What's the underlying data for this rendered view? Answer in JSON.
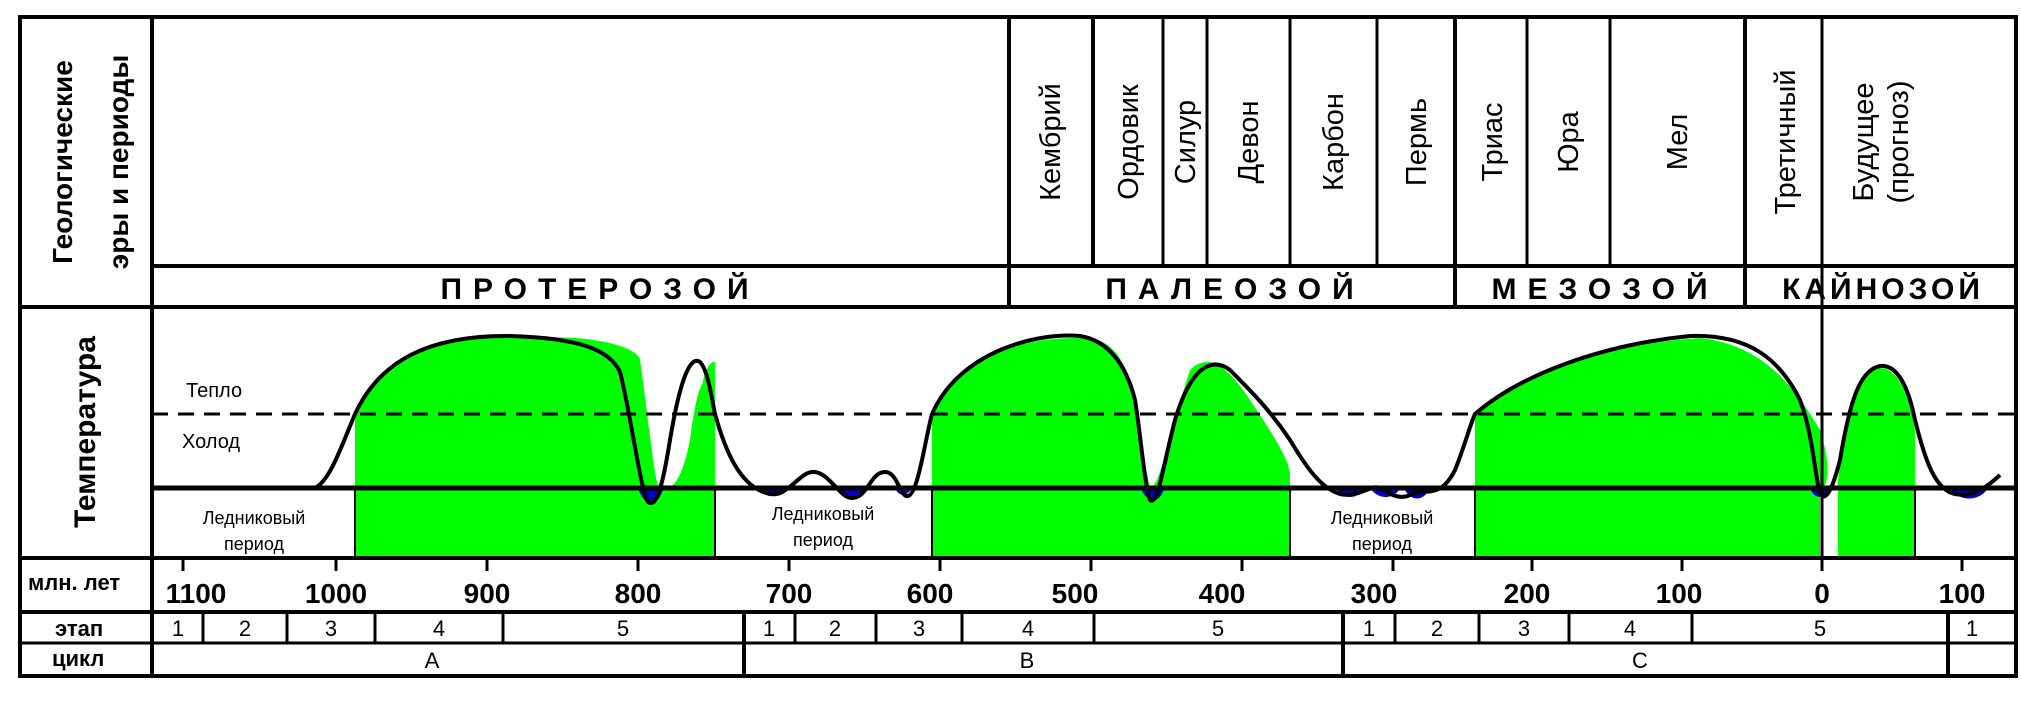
{
  "side_labels": {
    "geo_line1": "Геологические",
    "geo_line2": "эры и периоды",
    "temperature": "Температура"
  },
  "periods": [
    "Кембрий",
    "Ордовик",
    "Силур",
    "Девон",
    "Карбон",
    "Пермь",
    "Триас",
    "Юра",
    "Мел",
    "Третичный"
  ],
  "future_line1": "Будущее",
  "future_line2": "(прогноз)",
  "eras": [
    "ПРОТЕРОЗОЙ",
    "ПАЛЕОЗОЙ",
    "МЕЗОЗОЙ",
    "КАЙНОЗОЙ"
  ],
  "temp": {
    "warm": "Тепло",
    "cold": "Холод",
    "glacial_line1": "Ледниковый",
    "glacial_line2": "период"
  },
  "rows": {
    "mya": "млн. лет",
    "stage": "этап",
    "cycle": "цикл"
  },
  "ticks": [
    "1100",
    "1000",
    "900",
    "800",
    "700",
    "600",
    "500",
    "400",
    "300",
    "200",
    "100",
    "0",
    "100"
  ],
  "stages": [
    "1",
    "2",
    "3",
    "4",
    "5",
    "1",
    "2",
    "3",
    "4",
    "5",
    "1",
    "2",
    "3",
    "4",
    "5",
    "1"
  ],
  "cycles": [
    "A",
    "B",
    "C",
    ""
  ],
  "colors": {
    "warm_fill": "#00ff00",
    "glacial_fill": "#0000cc",
    "line": "#000000",
    "background": "#ffffff"
  }
}
